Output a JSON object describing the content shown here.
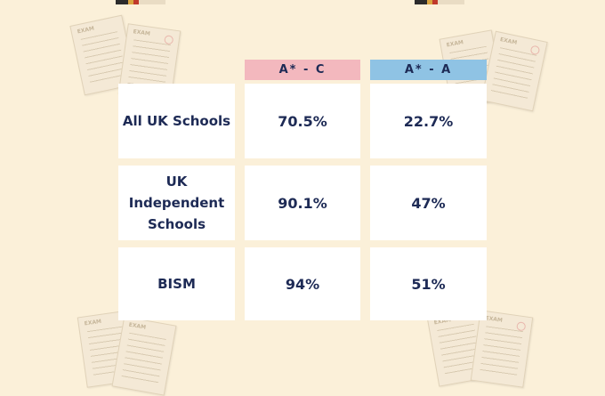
{
  "colors": {
    "background": "#fbf0d9",
    "header_c": "#f3b8be",
    "header_a": "#8fc3e4",
    "text": "#1d2a55",
    "cell": "#ffffff"
  },
  "decor": {
    "paper_label": "EXAM"
  },
  "table": {
    "headers": [
      "A* - C",
      "A* - A"
    ],
    "rows": [
      {
        "label": "All UK Schools",
        "values": [
          "70.5%",
          "22.7%"
        ]
      },
      {
        "label": "UK\nIndependent\nSchools",
        "values": [
          "90.1%",
          "47%"
        ]
      },
      {
        "label": "BISM",
        "values": [
          "94%",
          "51%"
        ]
      }
    ]
  }
}
